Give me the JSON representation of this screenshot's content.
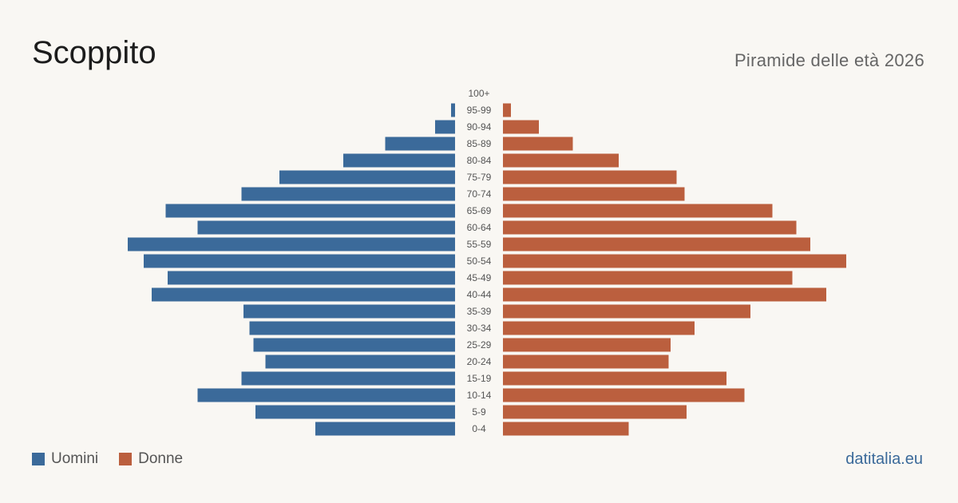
{
  "header": {
    "title": "Scoppito",
    "subtitle": "Piramide delle età 2026"
  },
  "legend": {
    "men_label": "Uomini",
    "women_label": "Donne"
  },
  "footer": {
    "source": "datitalia.eu"
  },
  "colors": {
    "men": "#3b6a9a",
    "women": "#bb5f3e"
  },
  "chart_data": {
    "type": "bar",
    "orientation": "horizontal-pyramid",
    "categories": [
      "100+",
      "95-99",
      "90-94",
      "85-89",
      "80-84",
      "75-79",
      "70-74",
      "65-69",
      "60-64",
      "55-59",
      "50-54",
      "45-49",
      "40-44",
      "35-39",
      "30-34",
      "25-29",
      "20-24",
      "15-19",
      "10-14",
      "5-9",
      "0-4"
    ],
    "series": [
      {
        "name": "Uomini",
        "values": [
          0,
          2,
          10,
          35,
          56,
          88,
          107,
          145,
          129,
          164,
          156,
          144,
          152,
          106,
          103,
          101,
          95,
          107,
          129,
          100,
          70
        ]
      },
      {
        "name": "Donne",
        "values": [
          0,
          4,
          18,
          35,
          58,
          87,
          91,
          135,
          147,
          154,
          172,
          145,
          162,
          124,
          96,
          84,
          83,
          112,
          121,
          92,
          63
        ]
      }
    ]
  }
}
